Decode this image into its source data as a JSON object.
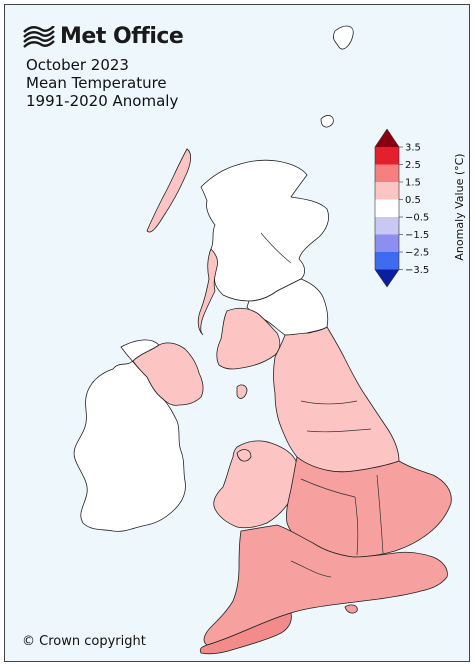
{
  "brand": {
    "name": "Met Office",
    "logo_icon": "met-office-wave-icon"
  },
  "title_lines": [
    "October 2023",
    "Mean Temperature",
    "1991-2020 Anomaly"
  ],
  "copyright": "© Crown copyright",
  "legend": {
    "title": "Anomaly Value (°C)",
    "ticks": [
      "3.5",
      "2.5",
      "1.5",
      "0.5",
      "−0.5",
      "−1.5",
      "−2.5",
      "−3.5"
    ],
    "colors": {
      "above_3_5": "#8b0010",
      "2_5_to_3_5": "#e4202c",
      "1_5_to_2_5": "#f6807f",
      "0_5_to_1_5": "#fdc4c4",
      "neutral": "#ffffff",
      "minus_1_5_to_minus_0_5": "#c9c8f3",
      "minus_2_5_to_minus_1_5": "#8c8ff0",
      "minus_3_5_to_minus_2_5": "#3e6cf0",
      "below_minus_3_5": "#0a1fa0"
    }
  },
  "colors": {
    "sea": "#eef7fb",
    "no_data_land": "#ffffff",
    "outline": "#222222"
  }
}
